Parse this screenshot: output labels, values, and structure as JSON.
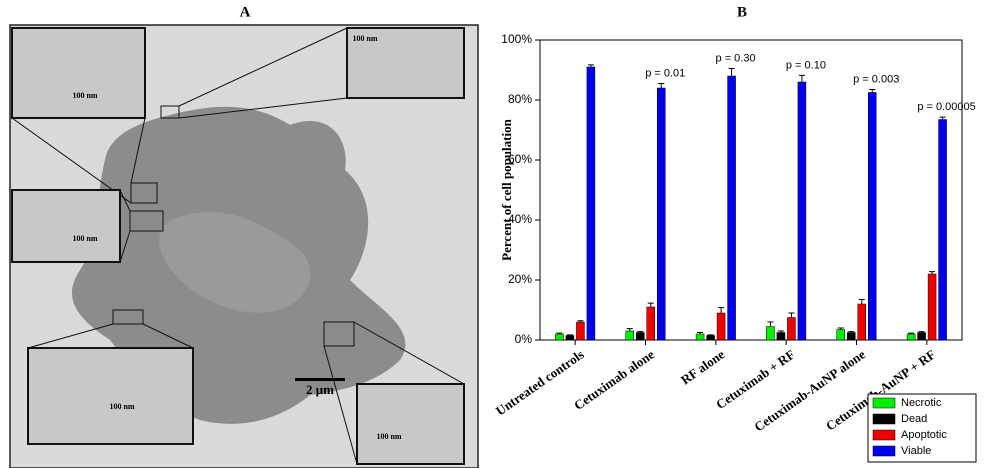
{
  "panel_a": {
    "label": "A",
    "inset_scale_labels": [
      "100 nm",
      "100 nm",
      "100 nm",
      "100 nm",
      "100 nm"
    ],
    "scale_bar_label": "2 μm"
  },
  "chart_data": {
    "type": "bar",
    "title": "B",
    "y_label": "Percent of cell population",
    "categories": [
      "Untreated controls",
      "Cetuximab alone",
      "RF alone",
      "Cetuximab + RF",
      "Cetuximab-AuNP alone",
      "Cetuximab-AuNP + RF"
    ],
    "series": [
      {
        "name": "Necrotic",
        "color": "#00ee00",
        "values": [
          2,
          3,
          2,
          4.5,
          3.5,
          2
        ],
        "errors": [
          0.3,
          0.8,
          0.5,
          1.5,
          0.5,
          0.3
        ]
      },
      {
        "name": "Dead",
        "color": "#000000",
        "values": [
          1.5,
          2.5,
          1.5,
          2.5,
          2.5,
          2.5
        ],
        "errors": [
          0.2,
          0.3,
          0.2,
          0.5,
          0.3,
          0.3
        ]
      },
      {
        "name": "Apoptotic",
        "color": "#ee0000",
        "values": [
          6,
          11,
          9,
          7.5,
          12,
          22
        ],
        "errors": [
          0.4,
          1.3,
          1.8,
          1.5,
          1.5,
          0.8
        ]
      },
      {
        "name": "Viable",
        "color": "#0000ee",
        "values": [
          91,
          84,
          88,
          86,
          82.5,
          73.5
        ],
        "errors": [
          0.7,
          1.5,
          2.5,
          2.2,
          1,
          0.8
        ]
      }
    ],
    "p_values": [
      null,
      "p = 0.01",
      "p = 0.30",
      "p = 0.10",
      "p = 0.003",
      "p = 0.00005"
    ],
    "ylim": [
      0,
      100
    ],
    "yticks": [
      {
        "value": 0,
        "label": "0%"
      },
      {
        "value": 20,
        "label": "20%"
      },
      {
        "value": 40,
        "label": "40%"
      },
      {
        "value": 60,
        "label": "60%"
      },
      {
        "value": 80,
        "label": "80%"
      },
      {
        "value": 100,
        "label": "100%"
      }
    ],
    "grid": false,
    "legend": "lower right"
  }
}
